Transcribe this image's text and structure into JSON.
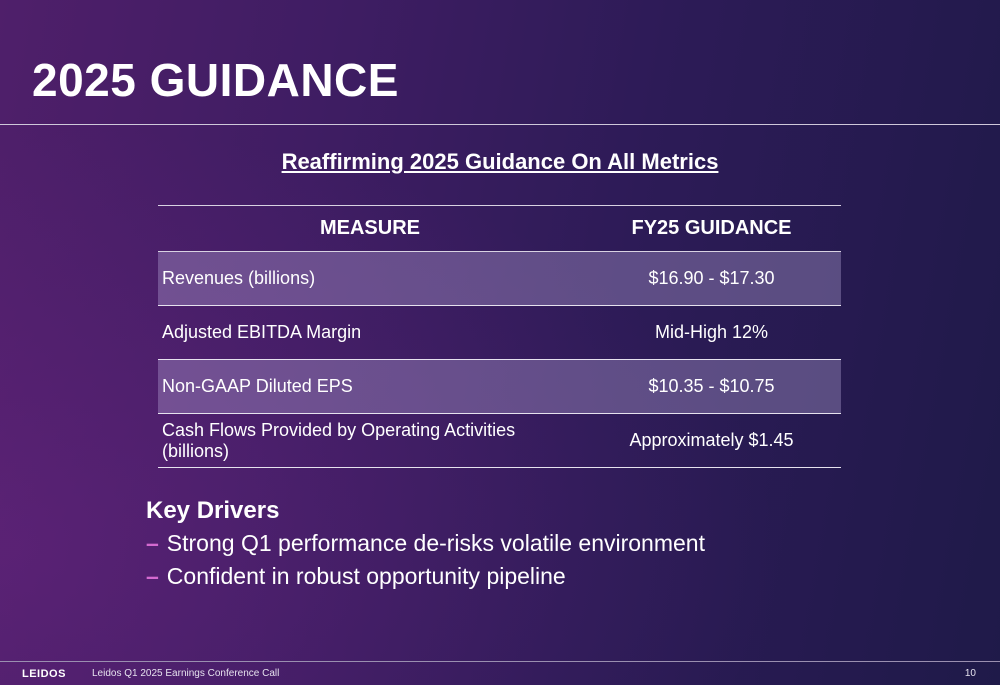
{
  "slide": {
    "title": "2025 GUIDANCE",
    "subtitle": "Reaffirming 2025 Guidance On All Metrics"
  },
  "table": {
    "headers": [
      "MEASURE",
      "FY25 GUIDANCE"
    ],
    "rows": [
      {
        "measure": "Revenues (billions)",
        "guidance": "$16.90 - $17.30"
      },
      {
        "measure": "Adjusted EBITDA Margin",
        "guidance": "Mid-High 12%"
      },
      {
        "measure": "Non-GAAP Diluted EPS",
        "guidance": "$10.35 - $10.75"
      },
      {
        "measure": "Cash Flows Provided by Operating Activities (billions)",
        "guidance": "Approximately $1.45"
      }
    ]
  },
  "key_drivers": {
    "title": "Key Drivers",
    "bullet_marker": "–",
    "items": [
      "Strong Q1 performance de-risks volatile environment",
      "Confident in robust opportunity pipeline"
    ]
  },
  "footer": {
    "logo": "LEIDOS",
    "text": "Leidos Q1 2025 Earnings Conference Call",
    "page": "10"
  },
  "colors": {
    "bullet_accent": "#d46ad0",
    "background_left": "#4f1f6a",
    "background_right": "#1f1a49"
  }
}
